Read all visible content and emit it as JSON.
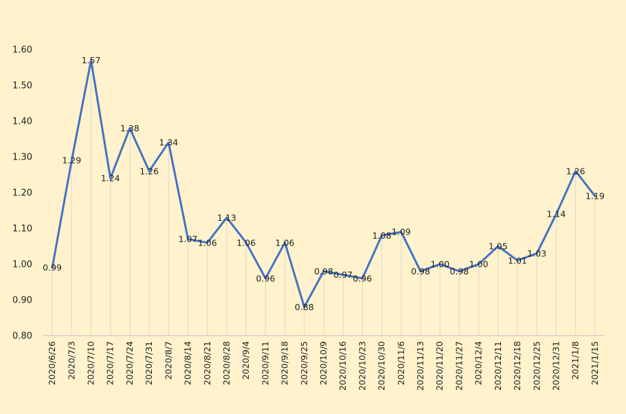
{
  "chart_data": {
    "type": "line",
    "title": "",
    "xlabel": "",
    "ylabel": "",
    "ylim": [
      0.8,
      1.6
    ],
    "yticks": [
      "0.80",
      "0.90",
      "1.00",
      "1.10",
      "1.20",
      "1.30",
      "1.40",
      "1.50",
      "1.60"
    ],
    "grid": false,
    "drop_lines": true,
    "line_color": "#4472c4",
    "drop_line_color": "#d9d9d9",
    "categories": [
      "2020/6/26",
      "2020/7/3",
      "2020/7/10",
      "2020/7/17",
      "2020/7/24",
      "2020/7/31",
      "2020/8/7",
      "2020/8/14",
      "2020/8/21",
      "2020/8/28",
      "2020/9/4",
      "2020/9/11",
      "2020/9/18",
      "2020/9/25",
      "2020/10/9",
      "2020/10/16",
      "2020/10/23",
      "2020/10/30",
      "2020/11/6",
      "2020/11/13",
      "2020/11/20",
      "2020/11/27",
      "2020/12/4",
      "2020/12/11",
      "2020/12/18",
      "2020/12/25",
      "2020/12/31",
      "2021/1/8",
      "2021/1/15"
    ],
    "values": [
      0.99,
      1.29,
      1.57,
      1.24,
      1.38,
      1.26,
      1.34,
      1.07,
      1.06,
      1.13,
      1.06,
      0.96,
      1.06,
      0.88,
      0.98,
      0.97,
      0.96,
      1.08,
      1.09,
      0.98,
      1.0,
      0.98,
      1.0,
      1.05,
      1.01,
      1.03,
      1.14,
      1.26,
      1.19
    ],
    "labels": [
      "0.99",
      "1.29",
      "1.57",
      "1.24",
      "1.38",
      "1.26",
      "1.34",
      "1.07",
      "1.06",
      "1.13",
      "1.06",
      "0.96",
      "1.06",
      "0.88",
      "0.98",
      "0.97",
      "0.96",
      "1.08",
      "1.09",
      "0.98",
      "1.00",
      "0.98",
      "1.00",
      "1.05",
      "1.01",
      "1.03",
      "1.14",
      "1.26",
      "1.19"
    ]
  }
}
